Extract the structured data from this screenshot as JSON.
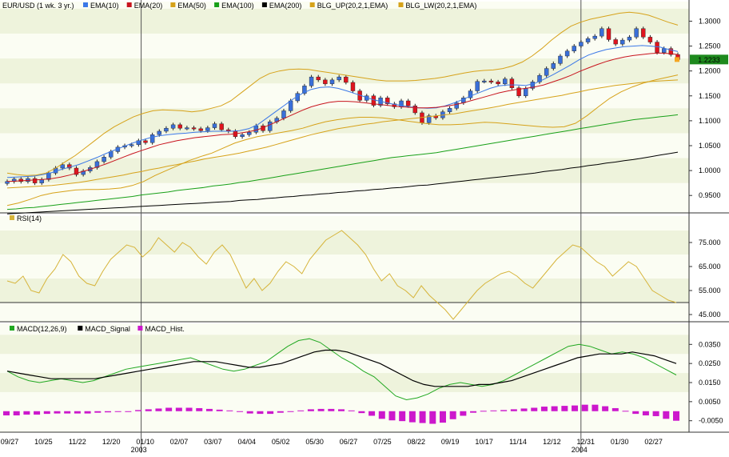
{
  "symbol": "EUR/USD (1 wk.  3 yr.)",
  "current_price_label": "1.2233",
  "colors": {
    "background": "#ffffff",
    "band_a": "#eef3dc",
    "band_b": "#fbfdf3",
    "candle_up": "#3a6fd8",
    "candle_down": "#e0141e",
    "ema10": "#3b78e7",
    "ema20": "#c8141e",
    "ema50": "#d6a21a",
    "ema100": "#18a018",
    "ema200": "#000000",
    "bollinger": "#d6a21a",
    "rsi": "#d6b43a",
    "macd": "#21a821",
    "macd_signal": "#000000",
    "macd_hist": "#cc18cc",
    "price_tag": "#1e8a1e"
  },
  "chart_data": [
    {
      "type": "candlestick",
      "panel": "price",
      "legend": [
        {
          "label": "EMA(10)",
          "color": "#3b78e7"
        },
        {
          "label": "EMA(20)",
          "color": "#c8141e"
        },
        {
          "label": "EMA(50)",
          "color": "#d6a21a"
        },
        {
          "label": "EMA(100)",
          "color": "#18a018"
        },
        {
          "label": "EMA(200)",
          "color": "#000000"
        },
        {
          "label": "BLG_UP(20,2,1,EMA)",
          "color": "#d6a21a"
        },
        {
          "label": "BLG_LW(20,2,1,EMA)",
          "color": "#d6a21a"
        }
      ],
      "ylim": [
        0.915,
        1.32
      ],
      "yticks": [
        "1.3000",
        "1.2500",
        "1.2000",
        "1.1500",
        "1.1000",
        "1.0500",
        "1.0000",
        "0.9500"
      ],
      "close": [
        0.978,
        0.983,
        0.978,
        0.984,
        0.975,
        0.982,
        0.995,
        1.005,
        1.012,
        1.005,
        0.992,
        0.999,
        1.006,
        1.018,
        1.027,
        1.038,
        1.047,
        1.05,
        1.052,
        1.06,
        1.056,
        1.072,
        1.079,
        1.085,
        1.092,
        1.085,
        1.086,
        1.084,
        1.08,
        1.086,
        1.094,
        1.082,
        1.079,
        1.068,
        1.072,
        1.077,
        1.09,
        1.08,
        1.098,
        1.105,
        1.12,
        1.14,
        1.155,
        1.17,
        1.188,
        1.182,
        1.174,
        1.182,
        1.188,
        1.177,
        1.16,
        1.141,
        1.15,
        1.131,
        1.146,
        1.134,
        1.128,
        1.14,
        1.13,
        1.116,
        1.096,
        1.11,
        1.106,
        1.118,
        1.125,
        1.136,
        1.146,
        1.16,
        1.179,
        1.18,
        1.178,
        1.174,
        1.184,
        1.166,
        1.15,
        1.165,
        1.178,
        1.191,
        1.205,
        1.215,
        1.23,
        1.24,
        1.25,
        1.258,
        1.265,
        1.27,
        1.285,
        1.263,
        1.254,
        1.262,
        1.268,
        1.285,
        1.268,
        1.258,
        1.237,
        1.245,
        1.233,
        1.223
      ],
      "series": [
        {
          "name": "EMA(10)",
          "values": [
            0.986,
            0.987,
            0.988,
            0.989,
            0.992,
            0.996,
            1.002,
            1.007,
            1.012,
            1.019,
            1.026,
            1.034,
            1.041,
            1.048,
            1.055,
            1.061,
            1.066,
            1.07,
            1.072,
            1.074,
            1.075,
            1.077,
            1.078,
            1.079,
            1.079,
            1.079,
            1.08,
            1.084,
            1.092,
            1.105,
            1.118,
            1.131,
            1.144,
            1.155,
            1.163,
            1.167,
            1.168,
            1.165,
            1.16,
            1.154,
            1.148,
            1.142,
            1.138,
            1.134,
            1.131,
            1.128,
            1.126,
            1.125,
            1.126,
            1.13,
            1.136,
            1.143,
            1.151,
            1.158,
            1.165,
            1.17,
            1.172,
            1.172,
            1.171,
            1.175,
            1.183,
            1.192,
            1.202,
            1.212,
            1.223,
            1.232,
            1.238,
            1.243,
            1.246,
            1.249,
            1.25,
            1.251,
            1.25,
            1.248,
            1.243,
            1.239
          ]
        },
        {
          "name": "EMA(20)",
          "values": [
            0.978,
            0.979,
            0.98,
            0.981,
            0.982,
            0.984,
            0.987,
            0.991,
            0.996,
            1.001,
            1.007,
            1.013,
            1.02,
            1.027,
            1.034,
            1.04,
            1.046,
            1.052,
            1.056,
            1.06,
            1.063,
            1.066,
            1.068,
            1.07,
            1.072,
            1.073,
            1.075,
            1.078,
            1.082,
            1.089,
            1.097,
            1.105,
            1.113,
            1.121,
            1.128,
            1.133,
            1.137,
            1.139,
            1.139,
            1.138,
            1.136,
            1.134,
            1.132,
            1.13,
            1.128,
            1.127,
            1.126,
            1.126,
            1.127,
            1.129,
            1.132,
            1.136,
            1.141,
            1.146,
            1.151,
            1.156,
            1.16,
            1.163,
            1.165,
            1.168,
            1.172,
            1.178,
            1.184,
            1.191,
            1.199,
            1.206,
            1.213,
            1.219,
            1.224,
            1.228,
            1.231,
            1.233,
            1.235,
            1.236,
            1.235,
            1.233
          ]
        },
        {
          "name": "EMA(50)",
          "values": [
            0.965,
            0.966,
            0.967,
            0.968,
            0.969,
            0.97,
            0.972,
            0.974,
            0.976,
            0.979,
            0.982,
            0.985,
            0.988,
            0.991,
            0.995,
            0.998,
            1.002,
            1.005,
            1.009,
            1.012,
            1.016,
            1.019,
            1.023,
            1.026,
            1.029,
            1.032,
            1.035,
            1.039,
            1.043,
            1.047,
            1.052,
            1.057,
            1.062,
            1.067,
            1.072,
            1.076,
            1.08,
            1.084,
            1.087,
            1.09,
            1.093,
            1.095,
            1.098,
            1.1,
            1.102,
            1.104,
            1.106,
            1.108,
            1.11,
            1.112,
            1.114,
            1.117,
            1.12,
            1.123,
            1.126,
            1.129,
            1.133,
            1.136,
            1.139,
            1.142,
            1.145,
            1.148,
            1.151,
            1.155,
            1.158,
            1.162,
            1.165,
            1.168,
            1.171,
            1.173,
            1.175,
            1.177,
            1.179,
            1.18,
            1.181,
            1.182
          ]
        },
        {
          "name": "EMA(100)",
          "values": [
            0.922,
            0.923,
            0.925,
            0.926,
            0.928,
            0.93,
            0.932,
            0.934,
            0.936,
            0.938,
            0.94,
            0.942,
            0.944,
            0.946,
            0.948,
            0.951,
            0.953,
            0.955,
            0.957,
            0.96,
            0.962,
            0.964,
            0.966,
            0.969,
            0.971,
            0.973,
            0.976,
            0.978,
            0.981,
            0.984,
            0.987,
            0.99,
            0.993,
            0.996,
            0.999,
            1.002,
            1.005,
            1.008,
            1.011,
            1.014,
            1.017,
            1.02,
            1.023,
            1.026,
            1.028,
            1.03,
            1.032,
            1.034,
            1.036,
            1.039,
            1.042,
            1.045,
            1.048,
            1.051,
            1.054,
            1.057,
            1.06,
            1.063,
            1.066,
            1.069,
            1.072,
            1.075,
            1.078,
            1.081,
            1.084,
            1.087,
            1.09,
            1.093,
            1.096,
            1.099,
            1.102,
            1.104,
            1.106,
            1.108,
            1.11,
            1.112
          ]
        },
        {
          "name": "EMA(200)",
          "values": [
            0.913,
            0.914,
            0.915,
            0.916,
            0.917,
            0.918,
            0.919,
            0.92,
            0.921,
            0.922,
            0.923,
            0.924,
            0.925,
            0.926,
            0.927,
            0.928,
            0.929,
            0.93,
            0.931,
            0.932,
            0.933,
            0.934,
            0.935,
            0.936,
            0.937,
            0.938,
            0.94,
            0.941,
            0.942,
            0.944,
            0.945,
            0.947,
            0.948,
            0.95,
            0.951,
            0.953,
            0.954,
            0.956,
            0.957,
            0.959,
            0.96,
            0.962,
            0.963,
            0.965,
            0.966,
            0.968,
            0.97,
            0.971,
            0.973,
            0.975,
            0.977,
            0.979,
            0.981,
            0.983,
            0.985,
            0.987,
            0.989,
            0.991,
            0.993,
            0.995,
            0.998,
            1.0,
            1.002,
            1.005,
            1.007,
            1.01,
            1.012,
            1.015,
            1.017,
            1.02,
            1.022,
            1.025,
            1.028,
            1.031,
            1.034,
            1.037
          ]
        },
        {
          "name": "BLG_UP(20,2,1,EMA)",
          "values": [
            0.995,
            0.992,
            0.99,
            0.991,
            0.995,
            1.005,
            1.018,
            1.03,
            1.045,
            1.06,
            1.075,
            1.088,
            1.098,
            1.108,
            1.115,
            1.12,
            1.122,
            1.121,
            1.12,
            1.118,
            1.12,
            1.125,
            1.13,
            1.14,
            1.155,
            1.17,
            1.185,
            1.195,
            1.2,
            1.203,
            1.204,
            1.203,
            1.2,
            1.197,
            1.194,
            1.191,
            1.188,
            1.185,
            1.182,
            1.18,
            1.18,
            1.18,
            1.181,
            1.183,
            1.185,
            1.188,
            1.192,
            1.196,
            1.199,
            1.201,
            1.202,
            1.205,
            1.21,
            1.218,
            1.23,
            1.245,
            1.262,
            1.277,
            1.29,
            1.298,
            1.304,
            1.308,
            1.312,
            1.316,
            1.318,
            1.316,
            1.312,
            1.305,
            1.298,
            1.292
          ]
        },
        {
          "name": "BLG_LW(20,2,1,EMA)",
          "values": [
            0.93,
            0.935,
            0.942,
            0.95,
            0.955,
            0.958,
            0.961,
            0.962,
            0.962,
            0.963,
            0.965,
            0.97,
            0.978,
            0.99,
            1.0,
            1.01,
            1.02,
            1.028,
            1.035,
            1.045,
            1.055,
            1.062,
            1.068,
            1.072,
            1.076,
            1.08,
            1.085,
            1.092,
            1.098,
            1.102,
            1.105,
            1.107,
            1.107,
            1.106,
            1.103,
            1.1,
            1.097,
            1.094,
            1.092,
            1.092,
            1.093,
            1.095,
            1.097,
            1.096,
            1.094,
            1.092,
            1.09,
            1.088,
            1.087,
            1.088,
            1.095,
            1.11,
            1.128,
            1.145,
            1.158,
            1.168,
            1.176,
            1.182,
            1.187,
            1.192
          ]
        }
      ]
    },
    {
      "type": "line",
      "panel": "rsi",
      "legend": [
        {
          "label": "RSI(14)",
          "color": "#d6b43a"
        }
      ],
      "ylim": [
        42,
        82
      ],
      "yticks": [
        "75.000",
        "65.000",
        "55.000",
        "45.000"
      ],
      "reference_line": 50,
      "values": [
        59,
        58,
        61,
        55,
        54,
        60,
        64,
        70,
        67,
        61,
        58,
        57,
        63,
        68,
        71,
        74,
        73,
        69,
        72,
        77,
        74,
        71,
        75,
        73,
        69,
        66,
        71,
        74,
        70,
        63,
        56,
        60,
        55,
        58,
        63,
        67,
        65,
        62,
        68,
        72,
        76,
        78,
        80,
        77,
        74,
        70,
        64,
        59,
        62,
        57,
        55,
        52,
        57,
        53,
        50,
        47,
        43,
        47,
        51,
        55,
        58,
        60,
        62,
        63,
        61,
        58,
        56,
        60,
        64,
        68,
        71,
        74,
        73,
        70,
        67,
        65,
        61,
        64,
        67,
        65,
        60,
        55,
        53,
        51,
        50
      ]
    },
    {
      "type": "line_bar",
      "panel": "macd",
      "legend": [
        {
          "label": "MACD(12,26,9)",
          "color": "#21a821"
        },
        {
          "label": "MACD_Signal",
          "color": "#000000"
        },
        {
          "label": "MACD_Hist.",
          "color": "#cc18cc"
        }
      ],
      "ylim": [
        -0.011,
        0.041
      ],
      "yticks": [
        "0.0350",
        "0.0250",
        "0.0150",
        "0.0050",
        "-0.0050"
      ],
      "macd": [
        0.021,
        0.018,
        0.016,
        0.015,
        0.016,
        0.017,
        0.016,
        0.015,
        0.016,
        0.018,
        0.02,
        0.022,
        0.023,
        0.024,
        0.025,
        0.026,
        0.027,
        0.028,
        0.026,
        0.024,
        0.022,
        0.021,
        0.022,
        0.024,
        0.026,
        0.03,
        0.034,
        0.037,
        0.038,
        0.036,
        0.032,
        0.028,
        0.025,
        0.021,
        0.018,
        0.013,
        0.008,
        0.006,
        0.007,
        0.009,
        0.012,
        0.014,
        0.015,
        0.014,
        0.013,
        0.014,
        0.016,
        0.019,
        0.022,
        0.025,
        0.028,
        0.031,
        0.034,
        0.035,
        0.034,
        0.032,
        0.03,
        0.031,
        0.03,
        0.028,
        0.025,
        0.022,
        0.019
      ],
      "signal": [
        0.021,
        0.02,
        0.019,
        0.018,
        0.017,
        0.017,
        0.017,
        0.017,
        0.017,
        0.018,
        0.019,
        0.02,
        0.021,
        0.022,
        0.023,
        0.024,
        0.025,
        0.026,
        0.026,
        0.026,
        0.025,
        0.024,
        0.023,
        0.023,
        0.024,
        0.025,
        0.027,
        0.029,
        0.031,
        0.032,
        0.032,
        0.031,
        0.029,
        0.027,
        0.025,
        0.022,
        0.019,
        0.016,
        0.014,
        0.013,
        0.013,
        0.013,
        0.013,
        0.014,
        0.014,
        0.015,
        0.016,
        0.018,
        0.02,
        0.022,
        0.024,
        0.026,
        0.028,
        0.029,
        0.03,
        0.03,
        0.03,
        0.031,
        0.03,
        0.029,
        0.027,
        0.025
      ],
      "hist": [
        -0.0022,
        -0.0022,
        -0.0018,
        -0.0018,
        -0.0014,
        -0.0012,
        -0.0012,
        -0.0012,
        -0.0012,
        -0.0008,
        -0.0006,
        -0.0004,
        0.0,
        0.0006,
        0.001,
        0.0014,
        0.0018,
        0.0018,
        0.0018,
        0.0016,
        0.0012,
        0.0008,
        0.0004,
        -0.0004,
        -0.0012,
        -0.0014,
        -0.0014,
        -0.0008,
        -0.0002,
        0.0004,
        0.001,
        0.0012,
        0.0012,
        0.001,
        0.0004,
        -0.001,
        -0.0024,
        -0.004,
        -0.0048,
        -0.0052,
        -0.0058,
        -0.0062,
        -0.0066,
        -0.006,
        -0.0042,
        -0.0024,
        -0.0008,
        0.0002,
        0.0004,
        0.0006,
        0.001,
        0.0014,
        0.0018,
        0.0024,
        0.0026,
        0.0028,
        0.003,
        0.0034,
        0.0034,
        0.0026,
        0.0016,
        0.0002,
        -0.0014,
        -0.0022,
        -0.0026,
        -0.004,
        -0.005
      ]
    }
  ],
  "x_axis": {
    "labels": [
      "09/27",
      "10/25",
      "11/22",
      "12/20",
      "01/10",
      "02/07",
      "03/07",
      "04/04",
      "05/02",
      "05/30",
      "06/27",
      "07/25",
      "08/22",
      "09/19",
      "10/17",
      "11/14",
      "12/12",
      "12/31",
      "01/30",
      "02/27"
    ],
    "year_labels": [
      {
        "label": "2003",
        "at": "01/10"
      },
      {
        "label": "2004",
        "at": "12/31"
      }
    ]
  }
}
